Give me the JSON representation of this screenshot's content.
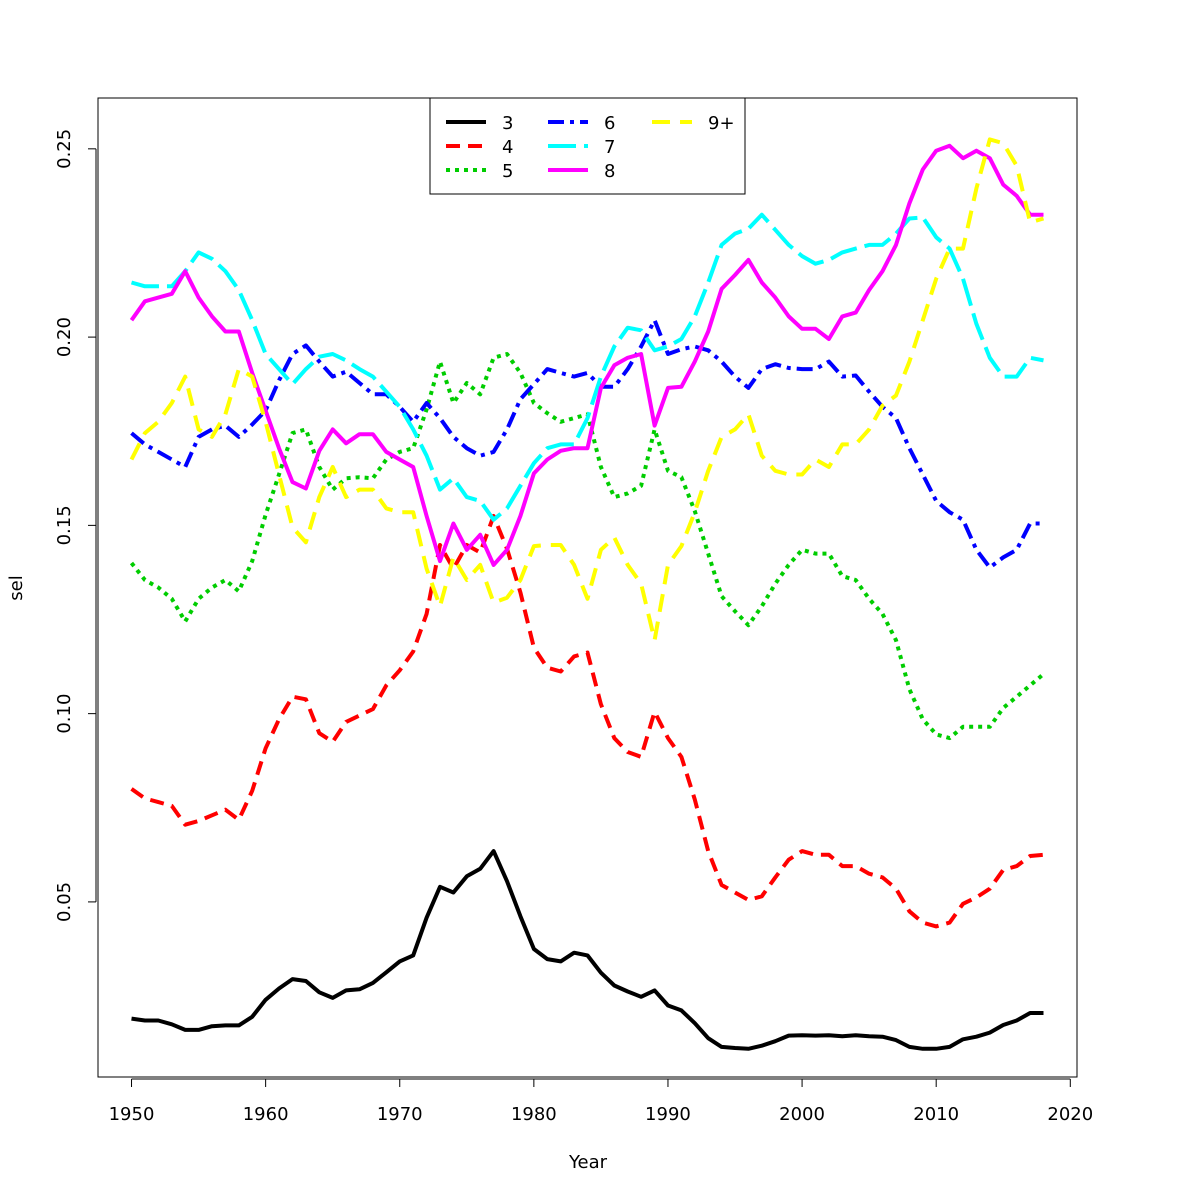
{
  "chart_data": {
    "type": "line",
    "xlabel": "Year",
    "ylabel": "sel",
    "xlim": [
      1947.5,
      2020.5
    ],
    "ylim": [
      0.0035,
      0.2635
    ],
    "x_ticks": [
      1950,
      1960,
      1970,
      1980,
      1990,
      2000,
      2010,
      2020
    ],
    "x_tick_labels": [
      "1950",
      "1960",
      "1970",
      "1980",
      "1990",
      "2000",
      "2010",
      "2020"
    ],
    "y_ticks": [
      0.05,
      0.1,
      0.15,
      0.2,
      0.25
    ],
    "y_tick_labels": [
      "0.05",
      "0.10",
      "0.15",
      "0.20",
      "0.25"
    ],
    "grid": false,
    "legend_position": "top-center",
    "x": [
      1950,
      1951,
      1952,
      1953,
      1954,
      1955,
      1956,
      1957,
      1958,
      1959,
      1960,
      1961,
      1962,
      1963,
      1964,
      1965,
      1966,
      1967,
      1968,
      1969,
      1970,
      1971,
      1972,
      1973,
      1974,
      1975,
      1976,
      1977,
      1978,
      1979,
      1980,
      1981,
      1982,
      1983,
      1984,
      1985,
      1986,
      1987,
      1988,
      1989,
      1990,
      1991,
      1992,
      1993,
      1994,
      1995,
      1996,
      1997,
      1998,
      1999,
      2000,
      2001,
      2002,
      2003,
      2004,
      2005,
      2006,
      2007,
      2008,
      2009,
      2010,
      2011,
      2012,
      2013,
      2014,
      2015,
      2016,
      2017,
      2018
    ],
    "series": [
      {
        "name": "3",
        "color": "#000000",
        "dash": "solid",
        "values": [
          0.019,
          0.0185,
          0.0185,
          0.0175,
          0.016,
          0.016,
          0.017,
          0.0172,
          0.0172,
          0.0195,
          0.024,
          0.027,
          0.0295,
          0.029,
          0.026,
          0.0245,
          0.0265,
          0.0268,
          0.0285,
          0.0313,
          0.0342,
          0.0358,
          0.0458,
          0.054,
          0.0525,
          0.0568,
          0.0588,
          0.0635,
          0.0555,
          0.0462,
          0.0375,
          0.0348,
          0.0342,
          0.0365,
          0.0358,
          0.0312,
          0.0278,
          0.0262,
          0.0248,
          0.0265,
          0.0225,
          0.0212,
          0.0178,
          0.0138,
          0.0115,
          0.0112,
          0.011,
          0.0118,
          0.013,
          0.0145,
          0.0146,
          0.0145,
          0.0146,
          0.0143,
          0.0146,
          0.0143,
          0.0142,
          0.0133,
          0.0115,
          0.011,
          0.011,
          0.0115,
          0.0135,
          0.0142,
          0.0153,
          0.0173,
          0.0185,
          0.0205,
          0.0205
        ]
      },
      {
        "name": "4",
        "color": "#ff0000",
        "dash": "14,8",
        "values": [
          0.08,
          0.0775,
          0.0765,
          0.0755,
          0.0705,
          0.0715,
          0.073,
          0.0745,
          0.0718,
          0.0795,
          0.0908,
          0.0985,
          0.1045,
          0.1038,
          0.0948,
          0.0925,
          0.0978,
          0.0995,
          0.1012,
          0.1075,
          0.1115,
          0.1165,
          0.1265,
          0.1448,
          0.1385,
          0.1448,
          0.1428,
          0.1525,
          0.1438,
          0.1322,
          0.1175,
          0.1122,
          0.1112,
          0.1152,
          0.1162,
          0.1025,
          0.0935,
          0.0898,
          0.0885,
          0.1005,
          0.0935,
          0.0885,
          0.0772,
          0.0635,
          0.0545,
          0.0525,
          0.0505,
          0.0515,
          0.0565,
          0.0612,
          0.0635,
          0.0625,
          0.0625,
          0.0595,
          0.0595,
          0.0575,
          0.0565,
          0.0535,
          0.0475,
          0.0445,
          0.0435,
          0.0445,
          0.0495,
          0.0512,
          0.0535,
          0.0585,
          0.0595,
          0.0622,
          0.0625
        ]
      },
      {
        "name": "5",
        "color": "#00cd00",
        "dash": "4,5",
        "values": [
          0.14,
          0.1355,
          0.1335,
          0.1305,
          0.1245,
          0.1305,
          0.1335,
          0.1355,
          0.1325,
          0.1405,
          0.1528,
          0.1635,
          0.1745,
          0.1755,
          0.1655,
          0.1595,
          0.1625,
          0.1628,
          0.1625,
          0.1675,
          0.1695,
          0.1705,
          0.1808,
          0.1935,
          0.1825,
          0.1878,
          0.1848,
          0.1945,
          0.1955,
          0.1905,
          0.1825,
          0.1798,
          0.1775,
          0.1785,
          0.1795,
          0.1655,
          0.1575,
          0.1585,
          0.1605,
          0.1755,
          0.1645,
          0.1628,
          0.1538,
          0.1425,
          0.1312,
          0.1272,
          0.1235,
          0.1285,
          0.1345,
          0.1395,
          0.1435,
          0.1425,
          0.1425,
          0.1365,
          0.1355,
          0.1305,
          0.1265,
          0.1195,
          0.1065,
          0.0985,
          0.0945,
          0.0935,
          0.0965,
          0.0965,
          0.0965,
          0.1015,
          0.1045,
          0.1075,
          0.1105
        ]
      },
      {
        "name": "6",
        "color": "#0000ff",
        "dash": "16,6,4,6",
        "values": [
          0.1745,
          0.1715,
          0.1695,
          0.1675,
          0.1655,
          0.1735,
          0.1755,
          0.1765,
          0.1735,
          0.1768,
          0.1805,
          0.1885,
          0.1955,
          0.1978,
          0.1935,
          0.1895,
          0.1908,
          0.1878,
          0.1848,
          0.1848,
          0.1815,
          0.1775,
          0.1825,
          0.1785,
          0.1735,
          0.1705,
          0.1685,
          0.1695,
          0.1755,
          0.1835,
          0.1875,
          0.1915,
          0.1905,
          0.1895,
          0.1905,
          0.1868,
          0.1868,
          0.1915,
          0.1975,
          0.2045,
          0.1955,
          0.1968,
          0.1975,
          0.1965,
          0.1935,
          0.1895,
          0.1865,
          0.1915,
          0.1928,
          0.1918,
          0.1915,
          0.1915,
          0.1935,
          0.1895,
          0.1898,
          0.1855,
          0.1815,
          0.1785,
          0.1705,
          0.1635,
          0.1565,
          0.1535,
          0.1515,
          0.1435,
          0.1388,
          0.1415,
          0.1435,
          0.1505,
          0.1505
        ]
      },
      {
        "name": "7",
        "color": "#00ffff",
        "dash": "28,8",
        "values": [
          0.2145,
          0.2135,
          0.2135,
          0.2135,
          0.2175,
          0.2225,
          0.2208,
          0.2175,
          0.2125,
          0.2045,
          0.1955,
          0.1915,
          0.1875,
          0.1915,
          0.1948,
          0.1955,
          0.1938,
          0.1915,
          0.1895,
          0.1855,
          0.1815,
          0.1755,
          0.1685,
          0.1595,
          0.1625,
          0.1575,
          0.1565,
          0.1515,
          0.1545,
          0.1605,
          0.1665,
          0.1705,
          0.1715,
          0.1715,
          0.1785,
          0.1895,
          0.1975,
          0.2025,
          0.2018,
          0.1965,
          0.1975,
          0.1995,
          0.2055,
          0.2145,
          0.2245,
          0.2275,
          0.2288,
          0.2325,
          0.2285,
          0.2245,
          0.2215,
          0.2195,
          0.2205,
          0.2225,
          0.2235,
          0.2245,
          0.2245,
          0.2275,
          0.2315,
          0.2318,
          0.2265,
          0.2235,
          0.2155,
          0.2035,
          0.1945,
          0.1895,
          0.1895,
          0.1945,
          0.1938
        ]
      },
      {
        "name": "8",
        "color": "#ff00ff",
        "dash": "solid",
        "values": [
          0.2045,
          0.2095,
          0.2105,
          0.2115,
          0.2175,
          0.2105,
          0.2055,
          0.2015,
          0.2015,
          0.1905,
          0.1805,
          0.1705,
          0.1615,
          0.1598,
          0.1698,
          0.1755,
          0.1718,
          0.1742,
          0.1742,
          0.1695,
          0.1675,
          0.1655,
          0.1525,
          0.1405,
          0.1505,
          0.1435,
          0.1475,
          0.1395,
          0.1435,
          0.1525,
          0.1638,
          0.1675,
          0.1698,
          0.1705,
          0.1705,
          0.1865,
          0.1925,
          0.1945,
          0.1955,
          0.1765,
          0.1865,
          0.1868,
          0.1935,
          0.2015,
          0.2128,
          0.2165,
          0.2205,
          0.2145,
          0.2105,
          0.2055,
          0.2022,
          0.2022,
          0.1995,
          0.2055,
          0.2065,
          0.2125,
          0.2175,
          0.2245,
          0.2355,
          0.2445,
          0.2495,
          0.2508,
          0.2475,
          0.2495,
          0.2475,
          0.2405,
          0.2375,
          0.2325,
          0.2325
        ]
      },
      {
        "name": "9+",
        "color": "#ffff00",
        "dash": "18,10",
        "values": [
          0.1675,
          0.1745,
          0.1775,
          0.1825,
          0.1895,
          0.1755,
          0.1735,
          0.1795,
          0.1915,
          0.1895,
          0.1775,
          0.1635,
          0.1495,
          0.1455,
          0.1575,
          0.1655,
          0.1575,
          0.1595,
          0.1595,
          0.1545,
          0.1535,
          0.1535,
          0.1385,
          0.1285,
          0.1415,
          0.1355,
          0.1395,
          0.1295,
          0.1308,
          0.1355,
          0.1445,
          0.1448,
          0.1448,
          0.1395,
          0.1305,
          0.1435,
          0.1468,
          0.1395,
          0.1345,
          0.1195,
          0.1395,
          0.1445,
          0.1535,
          0.1645,
          0.1735,
          0.1755,
          0.1795,
          0.1685,
          0.1645,
          0.1635,
          0.1635,
          0.1675,
          0.1655,
          0.1715,
          0.1715,
          0.1755,
          0.1818,
          0.1845,
          0.1935,
          0.2045,
          0.2155,
          0.2235,
          0.2235,
          0.2395,
          0.2525,
          0.2515,
          0.2455,
          0.2305,
          0.2315
        ]
      }
    ]
  }
}
